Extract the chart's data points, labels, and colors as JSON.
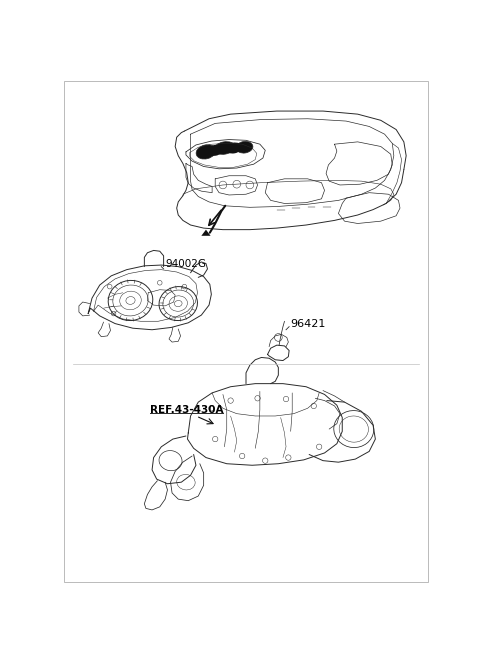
{
  "background_color": "#ffffff",
  "border_color": "#b0b0b0",
  "label_94002G": "94002G",
  "label_96421": "96421",
  "label_ref": "REF.43-430A",
  "figsize": [
    4.8,
    6.56
  ],
  "dpi": 100,
  "line_color": "#2a2a2a",
  "line_color_light": "#555555",
  "line_width": 0.7,
  "fill_black": "#111111"
}
